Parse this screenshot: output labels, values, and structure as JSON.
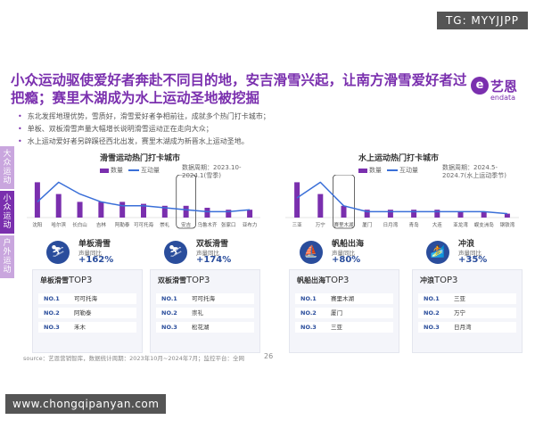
{
  "watermark_tag": "TG: MYYJJPP",
  "title": "小众运动驱使爱好者奔赴不同目的地，安吉滑雪兴起，让南方滑雪爱好者过把瘾；赛里木湖成为水上运动圣地被挖掘",
  "logo": {
    "mark": "e",
    "name": "艺恩",
    "sub": "endata"
  },
  "bullets": [
    "东北发挥地理优势，雪质好，滑雪爱好者争相前往，成就多个热门打卡城市；",
    "单板、双板滑雪声量大幅增长说明滑雪运动正在走向大众；",
    "水上运动爱好者另辟蹊径西北出发，赛里木湖成为新晋水上运动圣地。"
  ],
  "side_tabs": [
    {
      "label": "大众运动",
      "color": "#c9a6de"
    },
    {
      "label": "小众运动",
      "color": "#7a2fae"
    },
    {
      "label": "户外运动",
      "color": "#c9a6de"
    }
  ],
  "legend": {
    "bar": "数量",
    "line": "互动量"
  },
  "panels": [
    {
      "title": "滑雪运动热门打卡城市",
      "period": "数据周期：2023.10-2024.1(雪季)",
      "chart_data": {
        "type": "bar",
        "categories": [
          "沈阳",
          "哈尔滨",
          "长白山",
          "吉林",
          "阿勒泰",
          "可可托海",
          "崇礼",
          "安吉",
          "乌鲁木齐",
          "张家口",
          "亚布力"
        ],
        "series": [
          {
            "name": "数量",
            "values": [
              9,
              6,
              4,
              4,
              4,
              3.5,
              3,
              3,
              2.5,
              2,
              2
            ]
          },
          {
            "name": "互动量",
            "values": [
              4,
              9,
              6,
              4,
              3,
              3,
              2.5,
              2,
              1.5,
              1.5,
              2
            ]
          }
        ],
        "highlight": "安吉",
        "ylim": [
          0,
          10
        ]
      }
    },
    {
      "title": "水上运动热门打卡城市",
      "period": "数据周期：2024.5-2024.7(水上运动季节)",
      "chart_data": {
        "type": "bar",
        "categories": [
          "三亚",
          "万宁",
          "赛里木湖",
          "厦门",
          "日月湾",
          "青岛",
          "大连",
          "亚龙湾",
          "蜈支洲岛",
          "钢铁湾"
        ],
        "series": [
          {
            "name": "数量",
            "values": [
              9,
              6,
              3,
              2,
              2,
              2,
              2,
              1.5,
              1.5,
              1
            ]
          },
          {
            "name": "互动量",
            "values": [
              5,
              9,
              3,
              1.5,
              1.5,
              1.5,
              1.5,
              1.5,
              1.5,
              1
            ]
          }
        ],
        "highlight": "赛里木湖",
        "ylim": [
          0,
          10
        ]
      }
    }
  ],
  "cards": [
    {
      "icon": "⛷",
      "name": "单板滑雪",
      "sub": "声量同比",
      "value": "+162%"
    },
    {
      "icon": "⛷",
      "name": "双板滑雪",
      "sub": "声量同比",
      "value": "+174%"
    },
    {
      "icon": "⛵",
      "name": "帆船出海",
      "sub": "声量同比",
      "value": "+80%"
    },
    {
      "icon": "🏄",
      "name": "冲浪",
      "sub": "声量同比",
      "value": "+35%"
    }
  ],
  "tops": [
    {
      "label": "单板滑雪",
      "top": "TOP3",
      "rows": [
        {
          "no": "NO.1",
          "city": "可可托海"
        },
        {
          "no": "NO.2",
          "city": "阿勒泰"
        },
        {
          "no": "NO.3",
          "city": "禾木"
        }
      ]
    },
    {
      "label": "双板滑雪",
      "top": "TOP3",
      "rows": [
        {
          "no": "NO.1",
          "city": "可可托海"
        },
        {
          "no": "NO.2",
          "city": "崇礼"
        },
        {
          "no": "NO.3",
          "city": "松花湖"
        }
      ]
    },
    {
      "label": "帆船出海",
      "top": "TOP3",
      "rows": [
        {
          "no": "NO.1",
          "city": "赛里木湖"
        },
        {
          "no": "NO.2",
          "city": "厦门"
        },
        {
          "no": "NO.3",
          "city": "三亚"
        }
      ]
    },
    {
      "label": "冲浪",
      "top": "TOP3",
      "rows": [
        {
          "no": "NO.1",
          "city": "三亚"
        },
        {
          "no": "NO.2",
          "city": "万宁"
        },
        {
          "no": "NO.3",
          "city": "日月湾"
        }
      ]
    }
  ],
  "source": "source：艺恩营销智库，数据统计周期：2023年10月~2024年7月；监控平台：全网",
  "page_number": "26",
  "url_banner": "www.chongqipanyan.com",
  "colors": {
    "accent": "#7a2fae",
    "line": "#3a6fd8",
    "navy": "#2a4d9c"
  }
}
